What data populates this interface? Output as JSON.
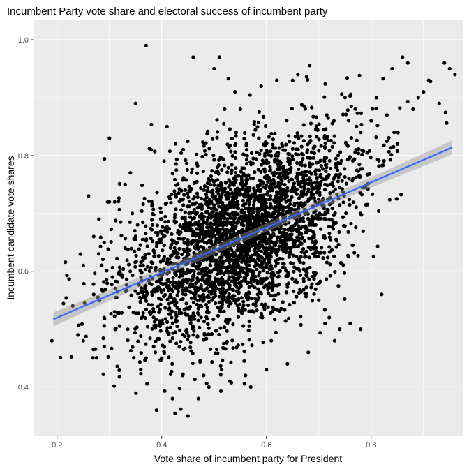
{
  "chart_data": {
    "type": "scatter",
    "title": "Incumbent Party vote share and electoral success of incumbent party",
    "xlabel": "Vote share of incumbent party for President",
    "ylabel": "Incumbent candidate vote shares",
    "xlim": [
      0.155,
      0.975
    ],
    "ylim": [
      0.315,
      1.035
    ],
    "x_ticks": [
      0.2,
      0.4,
      0.6,
      0.8
    ],
    "x_tick_labels": [
      "0.2",
      "0.4",
      "0.6",
      "0.8"
    ],
    "y_ticks": [
      0.4,
      0.6,
      0.8,
      1.0
    ],
    "y_tick_labels": [
      "0.4",
      "0.6",
      "0.8",
      "1.0"
    ],
    "grid": true,
    "background": "#ebebeb",
    "point_color": "#000000",
    "fit_line": {
      "method": "linear",
      "color": "#3366ff",
      "band_color": "#999999",
      "start": [
        0.193,
        0.517
      ],
      "end": [
        0.955,
        0.814
      ]
    },
    "n_points_approx": 3500,
    "points": [
      [
        0.19,
        0.48
      ],
      [
        0.23,
        0.54
      ],
      [
        0.24,
        0.49
      ],
      [
        0.25,
        0.48
      ],
      [
        0.26,
        0.73
      ],
      [
        0.27,
        0.66
      ],
      [
        0.28,
        0.69
      ],
      [
        0.29,
        0.47
      ],
      [
        0.3,
        0.72
      ],
      [
        0.31,
        0.72
      ],
      [
        0.3,
        0.83
      ],
      [
        0.32,
        0.6
      ],
      [
        0.33,
        0.75
      ],
      [
        0.34,
        0.77
      ],
      [
        0.35,
        0.89
      ],
      [
        0.37,
        0.99
      ],
      [
        0.38,
        0.81
      ],
      [
        0.39,
        0.36
      ],
      [
        0.41,
        0.85
      ],
      [
        0.45,
        0.35
      ],
      [
        0.47,
        0.38
      ],
      [
        0.48,
        0.42
      ],
      [
        0.49,
        0.4
      ],
      [
        0.46,
        0.97
      ],
      [
        0.5,
        0.95
      ],
      [
        0.51,
        0.97
      ],
      [
        0.54,
        0.91
      ],
      [
        0.52,
        0.88
      ],
      [
        0.55,
        0.88
      ],
      [
        0.57,
        0.4
      ],
      [
        0.59,
        0.92
      ],
      [
        0.62,
        0.93
      ],
      [
        0.65,
        0.93
      ],
      [
        0.66,
        0.94
      ],
      [
        0.72,
        0.52
      ],
      [
        0.73,
        0.48
      ],
      [
        0.74,
        0.5
      ],
      [
        0.76,
        0.51
      ],
      [
        0.78,
        0.5
      ],
      [
        0.82,
        0.56
      ],
      [
        0.84,
        0.95
      ],
      [
        0.86,
        0.97
      ],
      [
        0.87,
        0.96
      ],
      [
        0.9,
        0.91
      ],
      [
        0.93,
        0.89
      ],
      [
        0.94,
        0.96
      ],
      [
        0.95,
        0.95
      ],
      [
        0.96,
        0.94
      ],
      [
        0.88,
        0.88
      ],
      [
        0.85,
        0.82
      ],
      [
        0.8,
        0.86
      ],
      [
        0.78,
        0.84
      ],
      [
        0.91,
        0.93
      ],
      [
        0.89,
        0.9
      ],
      [
        0.83,
        0.87
      ],
      [
        0.81,
        0.9
      ],
      [
        0.25,
        0.61
      ],
      [
        0.27,
        0.56
      ],
      [
        0.29,
        0.52
      ],
      [
        0.31,
        0.53
      ],
      [
        0.33,
        0.64
      ],
      [
        0.36,
        0.43
      ],
      [
        0.37,
        0.45
      ],
      [
        0.4,
        0.45
      ],
      [
        0.42,
        0.44
      ],
      [
        0.44,
        0.42
      ],
      [
        0.53,
        0.41
      ],
      [
        0.56,
        0.42
      ],
      [
        0.6,
        0.43
      ],
      [
        0.64,
        0.44
      ],
      [
        0.68,
        0.46
      ],
      [
        0.7,
        0.55
      ]
    ]
  }
}
